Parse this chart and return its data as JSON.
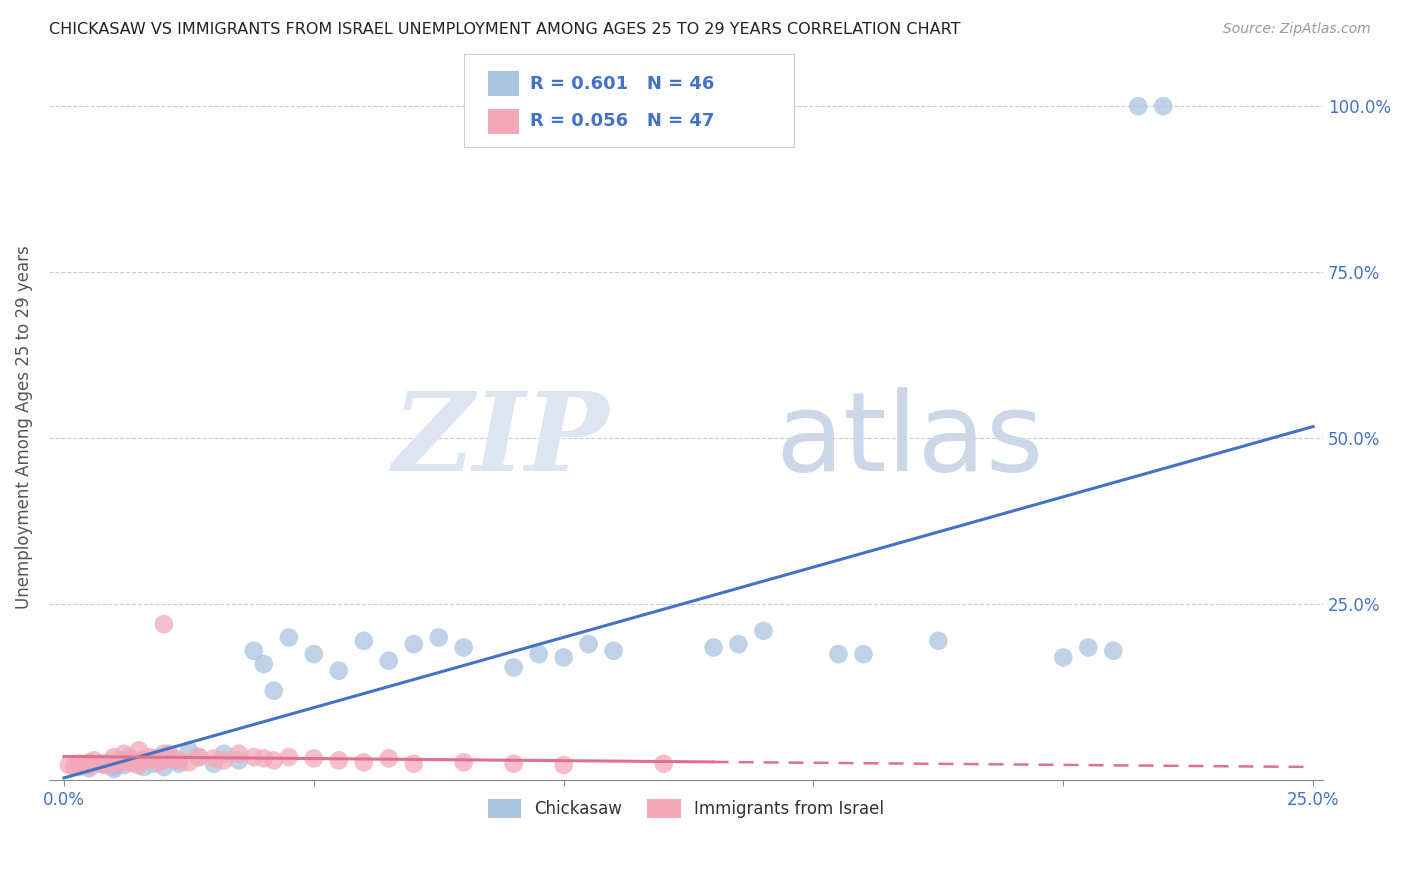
{
  "title": "CHICKASAW VS IMMIGRANTS FROM ISRAEL UNEMPLOYMENT AMONG AGES 25 TO 29 YEARS CORRELATION CHART",
  "source": "Source: ZipAtlas.com",
  "ylabel": "Unemployment Among Ages 25 to 29 years",
  "xmin": 0.0,
  "xmax": 0.25,
  "ymin": 0.0,
  "ymax": 1.05,
  "R_blue": 0.601,
  "N_blue": 46,
  "R_pink": 0.056,
  "N_pink": 47,
  "blue_color": "#aac4e0",
  "pink_color": "#f4a8b8",
  "trend_blue_color": "#4472c4",
  "trend_pink_color": "#e07090",
  "grid_color": "#cccccc",
  "axis_color": "#888888",
  "text_color": "#555555",
  "tick_color": "#4472c4",
  "chickasaw_x": [
    0.003,
    0.005,
    0.008,
    0.01,
    0.01,
    0.012,
    0.013,
    0.015,
    0.016,
    0.018,
    0.02,
    0.021,
    0.022,
    0.023,
    0.025,
    0.027,
    0.03,
    0.032,
    0.035,
    0.038,
    0.04,
    0.042,
    0.045,
    0.05,
    0.055,
    0.06,
    0.065,
    0.07,
    0.075,
    0.08,
    0.09,
    0.095,
    0.1,
    0.105,
    0.11,
    0.13,
    0.135,
    0.14,
    0.155,
    0.16,
    0.175,
    0.2,
    0.205,
    0.21,
    0.215,
    0.22
  ],
  "chickasaw_y": [
    0.005,
    0.003,
    0.01,
    0.005,
    0.002,
    0.008,
    0.02,
    0.015,
    0.005,
    0.01,
    0.005,
    0.025,
    0.015,
    0.01,
    0.03,
    0.02,
    0.01,
    0.025,
    0.015,
    0.18,
    0.16,
    0.12,
    0.2,
    0.175,
    0.15,
    0.195,
    0.165,
    0.19,
    0.2,
    0.185,
    0.155,
    0.175,
    0.17,
    0.19,
    0.18,
    0.185,
    0.19,
    0.21,
    0.175,
    0.175,
    0.195,
    0.17,
    0.185,
    0.18,
    1.0,
    1.0
  ],
  "israel_x": [
    0.001,
    0.002,
    0.003,
    0.004,
    0.005,
    0.005,
    0.006,
    0.007,
    0.008,
    0.009,
    0.01,
    0.01,
    0.011,
    0.012,
    0.012,
    0.013,
    0.014,
    0.015,
    0.015,
    0.016,
    0.017,
    0.018,
    0.019,
    0.02,
    0.02,
    0.021,
    0.022,
    0.023,
    0.025,
    0.027,
    0.03,
    0.032,
    0.035,
    0.038,
    0.04,
    0.042,
    0.045,
    0.05,
    0.055,
    0.06,
    0.065,
    0.07,
    0.08,
    0.09,
    0.1,
    0.12,
    0.02
  ],
  "israel_y": [
    0.008,
    0.005,
    0.01,
    0.008,
    0.012,
    0.006,
    0.015,
    0.01,
    0.008,
    0.012,
    0.01,
    0.02,
    0.015,
    0.012,
    0.025,
    0.018,
    0.01,
    0.008,
    0.03,
    0.015,
    0.02,
    0.018,
    0.012,
    0.015,
    0.025,
    0.02,
    0.018,
    0.015,
    0.012,
    0.02,
    0.018,
    0.015,
    0.025,
    0.02,
    0.018,
    0.015,
    0.02,
    0.018,
    0.015,
    0.012,
    0.018,
    0.01,
    0.012,
    0.01,
    0.008,
    0.01,
    0.22
  ]
}
